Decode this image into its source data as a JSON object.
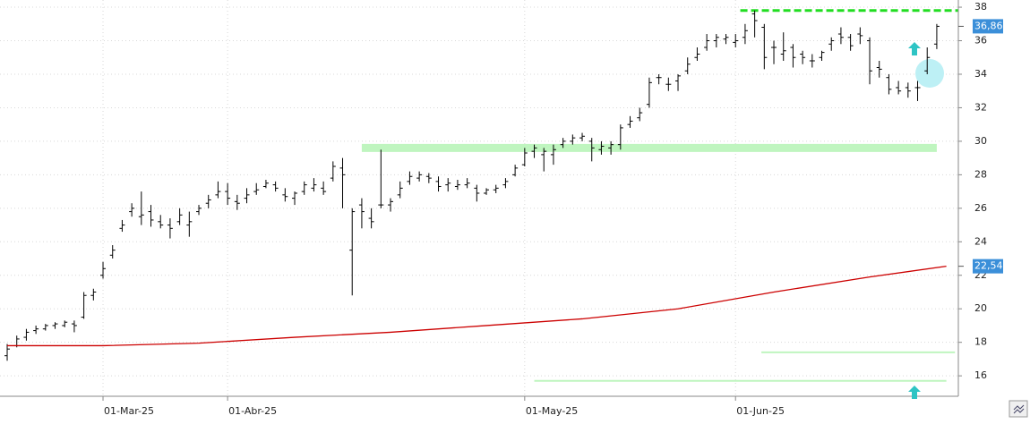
{
  "chart_data": {
    "type": "ohlc",
    "categories": [
      null,
      null,
      null,
      null,
      null,
      null,
      null,
      null,
      null,
      null,
      "01-Mar-25",
      null,
      null,
      null,
      null,
      null,
      null,
      null,
      null,
      null,
      null,
      null,
      null,
      "01-Abr-25",
      null,
      null,
      null,
      null,
      null,
      null,
      null,
      null,
      null,
      null,
      null,
      null,
      null,
      null,
      null,
      null,
      null,
      null,
      null,
      null,
      null,
      null,
      null,
      null,
      null,
      null,
      null,
      null,
      null,
      null,
      "01-May-25",
      null,
      null,
      null,
      null,
      null,
      null,
      null,
      null,
      null,
      null,
      null,
      null,
      null,
      null,
      null,
      null,
      null,
      null,
      null,
      null,
      null,
      "01-Jun-25",
      null,
      null,
      null,
      null,
      null,
      null,
      null,
      null,
      null,
      null,
      null,
      null,
      null,
      null,
      null,
      null,
      null,
      null,
      null,
      null,
      null,
      null
    ],
    "bars": [
      [
        17.2,
        17.9,
        16.9,
        17.6
      ],
      [
        17.8,
        18.4,
        17.7,
        18.2
      ],
      [
        18.3,
        18.8,
        18.1,
        18.6
      ],
      [
        18.7,
        19.0,
        18.5,
        18.8
      ],
      [
        18.8,
        19.1,
        18.7,
        19.0
      ],
      [
        19.0,
        19.2,
        18.8,
        19.1
      ],
      [
        19.0,
        19.3,
        18.9,
        19.2
      ],
      [
        19.1,
        19.3,
        18.6,
        19.0
      ],
      [
        19.5,
        21.0,
        19.4,
        20.8
      ],
      [
        20.8,
        21.2,
        20.5,
        21.0
      ],
      [
        22.0,
        22.8,
        21.8,
        22.4
      ],
      [
        23.2,
        23.8,
        23.0,
        23.5
      ],
      [
        24.8,
        25.3,
        24.6,
        25.0
      ],
      [
        25.8,
        26.3,
        25.5,
        26.0
      ],
      [
        25.5,
        27.0,
        25.0,
        25.6
      ],
      [
        25.8,
        26.2,
        24.9,
        25.3
      ],
      [
        25.2,
        25.6,
        24.8,
        25.0
      ],
      [
        25.0,
        25.4,
        24.2,
        24.8
      ],
      [
        25.2,
        26.0,
        25.0,
        25.6
      ],
      [
        25.0,
        25.8,
        24.3,
        25.2
      ],
      [
        25.8,
        26.2,
        25.6,
        26.0
      ],
      [
        26.3,
        26.8,
        26.0,
        26.5
      ],
      [
        26.8,
        27.6,
        26.6,
        27.0
      ],
      [
        27.0,
        27.5,
        26.2,
        26.6
      ],
      [
        26.4,
        26.8,
        25.9,
        26.3
      ],
      [
        26.6,
        27.2,
        26.3,
        26.8
      ],
      [
        27.0,
        27.5,
        26.8,
        27.1
      ],
      [
        27.3,
        27.7,
        27.2,
        27.5
      ],
      [
        27.4,
        27.6,
        27.0,
        27.2
      ],
      [
        26.8,
        27.2,
        26.4,
        26.7
      ],
      [
        26.6,
        27.0,
        26.2,
        26.9
      ],
      [
        27.0,
        27.6,
        26.8,
        27.4
      ],
      [
        27.2,
        27.8,
        27.0,
        27.4
      ],
      [
        27.2,
        27.6,
        26.8,
        27.0
      ],
      [
        27.8,
        28.8,
        27.6,
        28.5
      ],
      [
        28.4,
        29.0,
        26.0,
        28.0
      ],
      [
        23.5,
        26.0,
        20.8,
        25.8
      ],
      [
        26.2,
        26.6,
        24.8,
        25.8
      ],
      [
        25.4,
        26.0,
        24.8,
        25.2
      ],
      [
        26.2,
        29.5,
        26.0,
        26.2
      ],
      [
        26.2,
        26.6,
        25.8,
        26.4
      ],
      [
        26.8,
        27.6,
        26.6,
        27.2
      ],
      [
        27.6,
        28.2,
        27.4,
        27.9
      ],
      [
        27.8,
        28.2,
        27.6,
        28.0
      ],
      [
        27.9,
        28.1,
        27.5,
        27.8
      ],
      [
        27.6,
        27.9,
        27.0,
        27.3
      ],
      [
        27.4,
        27.8,
        27.0,
        27.5
      ],
      [
        27.3,
        27.7,
        27.1,
        27.4
      ],
      [
        27.4,
        27.8,
        27.2,
        27.5
      ],
      [
        27.2,
        27.4,
        26.4,
        26.9
      ],
      [
        26.9,
        27.2,
        26.8,
        27.1
      ],
      [
        27.1,
        27.4,
        26.9,
        27.2
      ],
      [
        27.4,
        27.8,
        27.2,
        27.6
      ],
      [
        28.0,
        28.6,
        27.9,
        28.4
      ],
      [
        28.6,
        29.6,
        28.5,
        29.3
      ],
      [
        29.4,
        29.8,
        29.0,
        29.6
      ],
      [
        29.2,
        29.6,
        28.2,
        29.4
      ],
      [
        29.2,
        29.8,
        28.6,
        29.5
      ],
      [
        29.8,
        30.2,
        29.6,
        30.0
      ],
      [
        30.0,
        30.4,
        29.8,
        30.2
      ],
      [
        30.2,
        30.5,
        30.0,
        30.3
      ],
      [
        30.0,
        30.2,
        28.8,
        29.6
      ],
      [
        29.5,
        30.0,
        29.2,
        29.7
      ],
      [
        29.6,
        30.0,
        29.2,
        29.8
      ],
      [
        29.8,
        31.0,
        29.5,
        30.8
      ],
      [
        31.0,
        31.5,
        30.8,
        31.2
      ],
      [
        31.4,
        32.0,
        31.2,
        31.7
      ],
      [
        32.2,
        33.8,
        32.0,
        33.5
      ],
      [
        33.8,
        34.0,
        33.4,
        33.8
      ],
      [
        33.4,
        33.8,
        33.0,
        33.4
      ],
      [
        33.6,
        34.0,
        33.0,
        33.9
      ],
      [
        34.2,
        35.0,
        34.0,
        34.6
      ],
      [
        35.0,
        35.6,
        34.8,
        35.2
      ],
      [
        35.6,
        36.4,
        35.4,
        36.0
      ],
      [
        36.0,
        36.4,
        35.6,
        36.2
      ],
      [
        36.1,
        36.4,
        35.8,
        36.2
      ],
      [
        35.9,
        36.4,
        35.6,
        36.0
      ],
      [
        36.2,
        37.0,
        35.8,
        36.6
      ],
      [
        37.6,
        37.8,
        36.2,
        37.2
      ],
      [
        36.8,
        37.0,
        34.3,
        35.0
      ],
      [
        35.6,
        36.0,
        34.6,
        35.6
      ],
      [
        35.2,
        36.5,
        34.8,
        35.4
      ],
      [
        35.6,
        35.8,
        34.4,
        35.0
      ],
      [
        35.2,
        35.4,
        34.6,
        35.0
      ],
      [
        34.8,
        35.2,
        34.4,
        34.8
      ],
      [
        35.0,
        35.4,
        34.8,
        35.3
      ],
      [
        35.8,
        36.2,
        35.4,
        36.0
      ],
      [
        36.4,
        36.8,
        35.8,
        36.2
      ],
      [
        36.2,
        36.4,
        35.4,
        35.7
      ],
      [
        36.4,
        36.8,
        35.8,
        36.3
      ],
      [
        36.0,
        36.2,
        33.4,
        34.2
      ],
      [
        34.4,
        34.8,
        33.8,
        34.3
      ],
      [
        33.8,
        34.0,
        32.8,
        33.1
      ],
      [
        33.2,
        33.6,
        32.8,
        33.0
      ],
      [
        33.2,
        33.5,
        32.6,
        33.0
      ],
      [
        33.2,
        33.6,
        32.4,
        33.2
      ],
      [
        34.2,
        35.6,
        34.0,
        35.0
      ],
      [
        35.8,
        37.0,
        35.5,
        36.86
      ]
    ],
    "bar_color": "#000000",
    "moving_average": {
      "color": "#cc0000",
      "x": [
        0,
        10,
        20,
        30,
        40,
        50,
        60,
        70,
        80,
        90,
        98
      ],
      "values": [
        17.8,
        17.8,
        17.95,
        18.3,
        18.6,
        19.0,
        19.4,
        20.0,
        21.0,
        21.9,
        22.54
      ]
    },
    "levels": [
      {
        "value": 37.8,
        "from": 76.5,
        "to": 99.2,
        "color": "#22dd22",
        "style": "dashed"
      },
      {
        "value": 29.6,
        "from": 37,
        "to": 97,
        "color": "#bff5bf",
        "style": "band"
      },
      {
        "value": 17.4,
        "from": 78.7,
        "to": 98.9,
        "color": "#bff5bf",
        "style": "solid"
      },
      {
        "value": 15.7,
        "from": 55,
        "to": 98,
        "color": "#bff5bf",
        "style": "solid"
      }
    ],
    "last_labels": [
      {
        "value": 36.86,
        "label": "36,86"
      },
      {
        "value": 22.54,
        "label": "22,54"
      }
    ],
    "xlim": [
      -0.75,
      99.25
    ],
    "ylim": [
      14.78,
      38.43
    ],
    "yticks": [
      16,
      18,
      20,
      22,
      24,
      26,
      28,
      30,
      32,
      34,
      36,
      38
    ],
    "grid": true
  }
}
